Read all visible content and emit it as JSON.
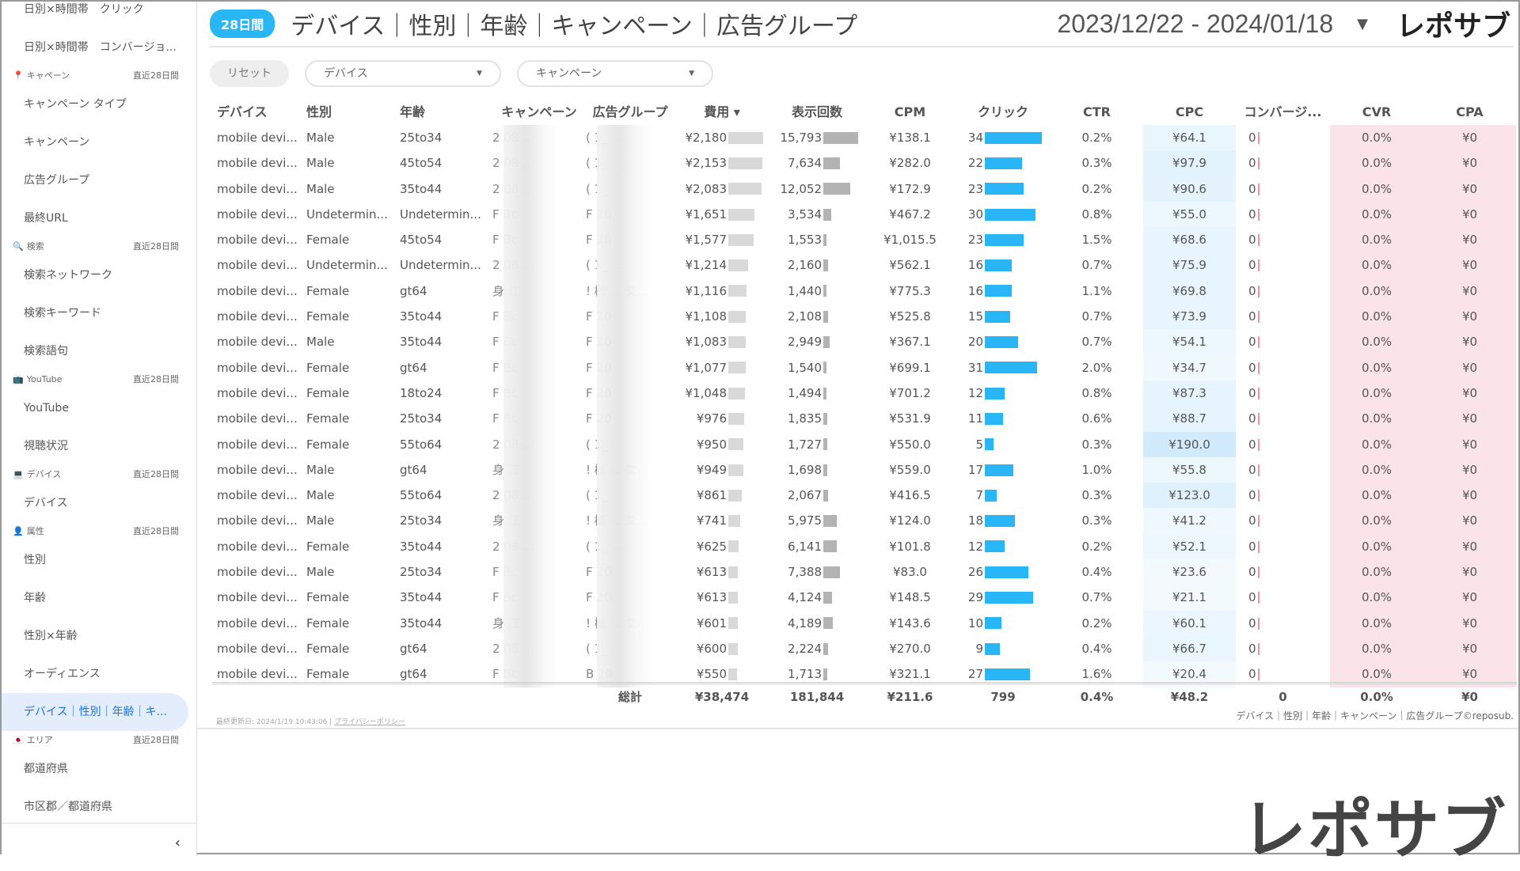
{
  "sidebar": {
    "items": [
      {
        "type": "item",
        "label": "日別×時間帯　クリック"
      },
      {
        "type": "item",
        "label": "日別×時間帯　コンバージョ..."
      },
      {
        "type": "head",
        "icon": "📍",
        "label": "キャペーン",
        "period": "直近28日間"
      },
      {
        "type": "item",
        "label": "キャンペーン タイプ"
      },
      {
        "type": "item",
        "label": "キャンペーン"
      },
      {
        "type": "item",
        "label": "広告グループ"
      },
      {
        "type": "item",
        "label": "最終URL"
      },
      {
        "type": "head",
        "icon": "🔍",
        "label": "検索",
        "period": "直近28日間"
      },
      {
        "type": "item",
        "label": "検索ネットワーク"
      },
      {
        "type": "item",
        "label": "検索キーワード"
      },
      {
        "type": "item",
        "label": "検索語句"
      },
      {
        "type": "head",
        "icon": "📺",
        "label": "YouTube",
        "period": "直近28日間"
      },
      {
        "type": "item",
        "label": "YouTube"
      },
      {
        "type": "item",
        "label": "視聴状況"
      },
      {
        "type": "head",
        "icon": "💻",
        "label": "デバイス",
        "period": "直近28日間"
      },
      {
        "type": "item",
        "label": "デバイス"
      },
      {
        "type": "head",
        "icon": "👤",
        "label": "属性",
        "period": "直近28日間"
      },
      {
        "type": "item",
        "label": "性別"
      },
      {
        "type": "item",
        "label": "年齢"
      },
      {
        "type": "item",
        "label": "性別×年齢"
      },
      {
        "type": "item",
        "label": "オーディエンス"
      },
      {
        "type": "item",
        "label": "デバイス｜性別｜年齢｜キ...",
        "active": true
      },
      {
        "type": "head",
        "icon": "🇯🇵",
        "label": "エリア",
        "period": "直近28日間"
      },
      {
        "type": "item",
        "label": "都道府県"
      },
      {
        "type": "item",
        "label": "市区郡／都道府県"
      }
    ],
    "collapse": "‹"
  },
  "header": {
    "badge": "28日間",
    "title": "デバイス｜性別｜年齢｜キャンペーン｜広告グループ",
    "date_range": "2023/12/22 - 2024/01/18",
    "date_caret": "▼",
    "logo": "レポサブ"
  },
  "filters": {
    "reset": "リセット",
    "device": "デバイス",
    "campaign": "キャンペーン",
    "caret": "▼"
  },
  "table": {
    "columns": [
      "デバイス",
      "性別",
      "年齢",
      "キャンペーン",
      "広告グループ",
      "費用 ▾",
      "表示回数",
      "CPM",
      "クリック",
      "CTR",
      "CPC",
      "コンバージ...",
      "CVR",
      "CPA"
    ],
    "rows": [
      [
        "mobile devi...",
        "Male",
        "25to34",
        "2 08 ...",
        "( 1_ ...",
        "¥2,180",
        2180,
        "15,793",
        15793,
        "¥138.1",
        "34",
        34,
        "0.2%",
        "¥64.1",
        64.1,
        "0",
        "0.0%",
        "¥0"
      ],
      [
        "mobile devi...",
        "Male",
        "45to54",
        "2 08 ...",
        "( 1_ ...",
        "¥2,153",
        2153,
        "7,634",
        7634,
        "¥282.0",
        "22",
        22,
        "0.3%",
        "¥97.9",
        97.9,
        "0",
        "0.0%",
        "¥0"
      ],
      [
        "mobile devi...",
        "Male",
        "35to44",
        "2 08 ...",
        "( 1_ ...",
        "¥2,083",
        2083,
        "12,052",
        12052,
        "¥172.9",
        "23",
        23,
        "0.2%",
        "¥90.6",
        90.6,
        "0",
        "0.0%",
        "¥0"
      ],
      [
        "mobile devi...",
        "Undetermin...",
        "Undetermin...",
        "F Bc",
        "F 20",
        "¥1,651",
        1651,
        "3,534",
        3534,
        "¥467.2",
        "30",
        30,
        "0.8%",
        "¥55.0",
        55.0,
        "0",
        "0.0%",
        "¥0"
      ],
      [
        "mobile devi...",
        "Female",
        "45to54",
        "F Bc",
        "F 20",
        "¥1,577",
        1577,
        "1,553",
        1553,
        "¥1,015.5",
        "23",
        23,
        "1.5%",
        "¥68.6",
        68.6,
        "0",
        "0.0%",
        "¥0"
      ],
      [
        "mobile devi...",
        "Undetermin...",
        "Undetermin...",
        "2 08 ...",
        "( 1_ ...",
        "¥1,214",
        1214,
        "2,160",
        2160,
        "¥562.1",
        "16",
        16,
        "0.7%",
        "¥75.9",
        75.9,
        "0",
        "0.0%",
        "¥0"
      ],
      [
        "mobile devi...",
        "Female",
        "gt64",
        "身 江",
        "! 概 ... 爻...",
        "¥1,116",
        1116,
        "1,440",
        1440,
        "¥775.3",
        "16",
        16,
        "1.1%",
        "¥69.8",
        69.8,
        "0",
        "0.0%",
        "¥0"
      ],
      [
        "mobile devi...",
        "Female",
        "35to44",
        "F Bc",
        "F 20",
        "¥1,108",
        1108,
        "2,108",
        2108,
        "¥525.8",
        "15",
        15,
        "0.7%",
        "¥73.9",
        73.9,
        "0",
        "0.0%",
        "¥0"
      ],
      [
        "mobile devi...",
        "Male",
        "35to44",
        "F Bc",
        "F 20",
        "¥1,083",
        1083,
        "2,949",
        2949,
        "¥367.1",
        "20",
        20,
        "0.7%",
        "¥54.1",
        54.1,
        "0",
        "0.0%",
        "¥0"
      ],
      [
        "mobile devi...",
        "Female",
        "gt64",
        "F Bc",
        "F 20",
        "¥1,077",
        1077,
        "1,540",
        1540,
        "¥699.1",
        "31",
        31,
        "2.0%",
        "¥34.7",
        34.7,
        "0",
        "0.0%",
        "¥0"
      ],
      [
        "mobile devi...",
        "Female",
        "18to24",
        "F Bc",
        "F 20",
        "¥1,048",
        1048,
        "1,494",
        1494,
        "¥701.2",
        "12",
        12,
        "0.8%",
        "¥87.3",
        87.3,
        "0",
        "0.0%",
        "¥0"
      ],
      [
        "mobile devi...",
        "Female",
        "25to34",
        "F Bc",
        "F 20",
        "¥976",
        976,
        "1,835",
        1835,
        "¥531.9",
        "11",
        11,
        "0.6%",
        "¥88.7",
        88.7,
        "0",
        "0.0%",
        "¥0"
      ],
      [
        "mobile devi...",
        "Female",
        "55to64",
        "2 08 ...",
        "( 1_ ...",
        "¥950",
        950,
        "1,727",
        1727,
        "¥550.0",
        "5",
        5,
        "0.3%",
        "¥190.0",
        190.0,
        "0",
        "0.0%",
        "¥0"
      ],
      [
        "mobile devi...",
        "Male",
        "gt64",
        "身 江",
        "! 概 ... 爻...",
        "¥949",
        949,
        "1,698",
        1698,
        "¥559.0",
        "17",
        17,
        "1.0%",
        "¥55.8",
        55.8,
        "0",
        "0.0%",
        "¥0"
      ],
      [
        "mobile devi...",
        "Male",
        "55to64",
        "2 08 ...",
        "( 1_ ...",
        "¥861",
        861,
        "2,067",
        2067,
        "¥416.5",
        "7",
        7,
        "0.3%",
        "¥123.0",
        123.0,
        "0",
        "0.0%",
        "¥0"
      ],
      [
        "mobile devi...",
        "Male",
        "25to34",
        "身 江",
        "! 概 ... 爻...",
        "¥741",
        741,
        "5,975",
        5975,
        "¥124.0",
        "18",
        18,
        "0.3%",
        "¥41.2",
        41.2,
        "0",
        "0.0%",
        "¥0"
      ],
      [
        "mobile devi...",
        "Female",
        "35to44",
        "2 08 ...",
        "( 1_ ...",
        "¥625",
        625,
        "6,141",
        6141,
        "¥101.8",
        "12",
        12,
        "0.2%",
        "¥52.1",
        52.1,
        "0",
        "0.0%",
        "¥0"
      ],
      [
        "mobile devi...",
        "Male",
        "25to34",
        "F Bc",
        "F 20",
        "¥613",
        613,
        "7,388",
        7388,
        "¥83.0",
        "26",
        26,
        "0.4%",
        "¥23.6",
        23.6,
        "0",
        "0.0%",
        "¥0"
      ],
      [
        "mobile devi...",
        "Female",
        "35to44",
        "F Bc",
        "F 20",
        "¥613",
        613,
        "4,124",
        4124,
        "¥148.5",
        "29",
        29,
        "0.7%",
        "¥21.1",
        21.1,
        "0",
        "0.0%",
        "¥0"
      ],
      [
        "mobile devi...",
        "Female",
        "35to44",
        "身 江",
        "! 概 ... 爻...",
        "¥601",
        601,
        "4,189",
        4189,
        "¥143.6",
        "10",
        10,
        "0.2%",
        "¥60.1",
        60.1,
        "0",
        "0.0%",
        "¥0"
      ],
      [
        "mobile devi...",
        "Female",
        "gt64",
        "2 08 ...",
        "( 1_ ...",
        "¥600",
        600,
        "2,224",
        2224,
        "¥270.0",
        "9",
        9,
        "0.4%",
        "¥66.7",
        66.7,
        "0",
        "0.0%",
        "¥0"
      ],
      [
        "mobile devi...",
        "Female",
        "gt64",
        "F Bc",
        "B 20",
        "¥550",
        550,
        "1,713",
        1713,
        "¥321.1",
        "27",
        27,
        "1.6%",
        "¥20.4",
        20.4,
        "0",
        "0.0%",
        "¥0"
      ]
    ],
    "totals": {
      "label": "総計",
      "cost": "¥38,474",
      "impressions": "181,844",
      "cpm": "¥211.6",
      "clicks": "799",
      "ctr": "0.4%",
      "cpc": "¥48.2",
      "conversions": "0",
      "cvr": "0.0%",
      "cpa": "¥0"
    },
    "colors": {
      "click_bar": "#29b6f6",
      "cost_bar": "#d9d9d9",
      "impr_bar": "#b3b3b3",
      "cpc_heat": "#bfe3fb",
      "conv_bar": "#f48fb1"
    }
  },
  "footer": {
    "updated": "最終更新日: 2024/1/19 10:43:06 |",
    "privacy": "プライバシーポリシー",
    "right": "デバイス｜性別｜年齢｜キャンペーン｜広告グループ©reposub."
  },
  "watermark_logo": "レポサブ"
}
